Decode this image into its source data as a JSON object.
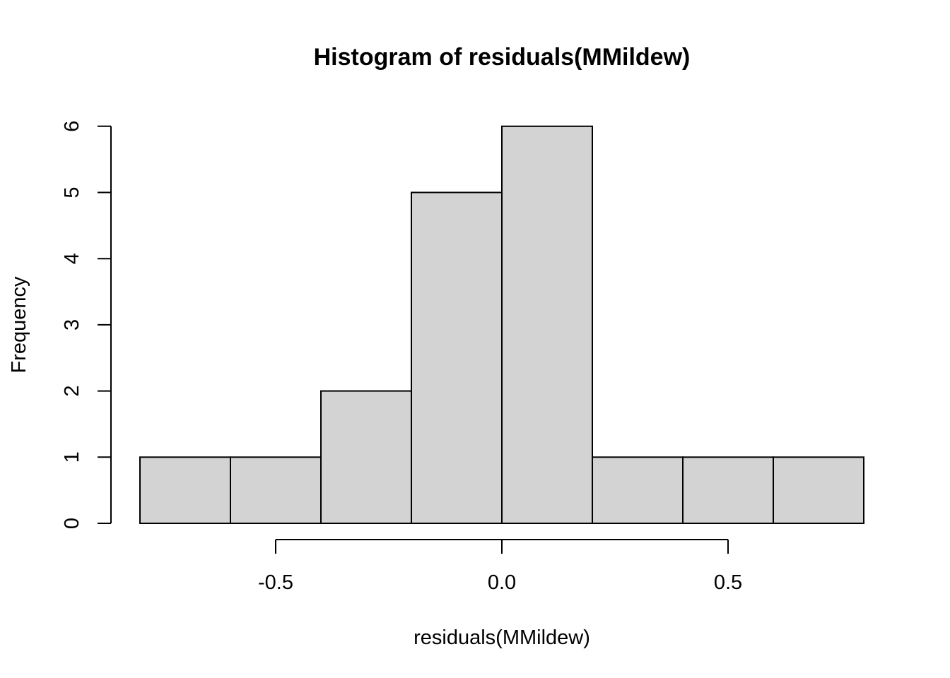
{
  "chart_data": {
    "type": "bar",
    "subtype": "histogram",
    "title": "Histogram of residuals(MMildew)",
    "xlabel": "residuals(MMildew)",
    "ylabel": "Frequency",
    "bins": [
      {
        "from": -0.8,
        "to": -0.6,
        "count": 1
      },
      {
        "from": -0.6,
        "to": -0.4,
        "count": 1
      },
      {
        "from": -0.4,
        "to": -0.2,
        "count": 2
      },
      {
        "from": -0.2,
        "to": 0.0,
        "count": 5
      },
      {
        "from": 0.0,
        "to": 0.2,
        "count": 6
      },
      {
        "from": 0.2,
        "to": 0.4,
        "count": 1
      },
      {
        "from": 0.4,
        "to": 0.6,
        "count": 1
      },
      {
        "from": 0.6,
        "to": 0.8,
        "count": 1
      }
    ],
    "xlim": [
      -0.8,
      0.8
    ],
    "ylim": [
      0,
      6
    ],
    "x_ticks": [
      -0.5,
      0.0,
      0.5
    ],
    "x_tick_labels": [
      "-0.5",
      "0.0",
      "0.5"
    ],
    "y_ticks": [
      0,
      1,
      2,
      3,
      4,
      5,
      6
    ],
    "y_tick_labels": [
      "0",
      "1",
      "2",
      "3",
      "4",
      "5",
      "6"
    ],
    "bar_color": "#d3d3d3",
    "grid": false,
    "legend": "none"
  }
}
